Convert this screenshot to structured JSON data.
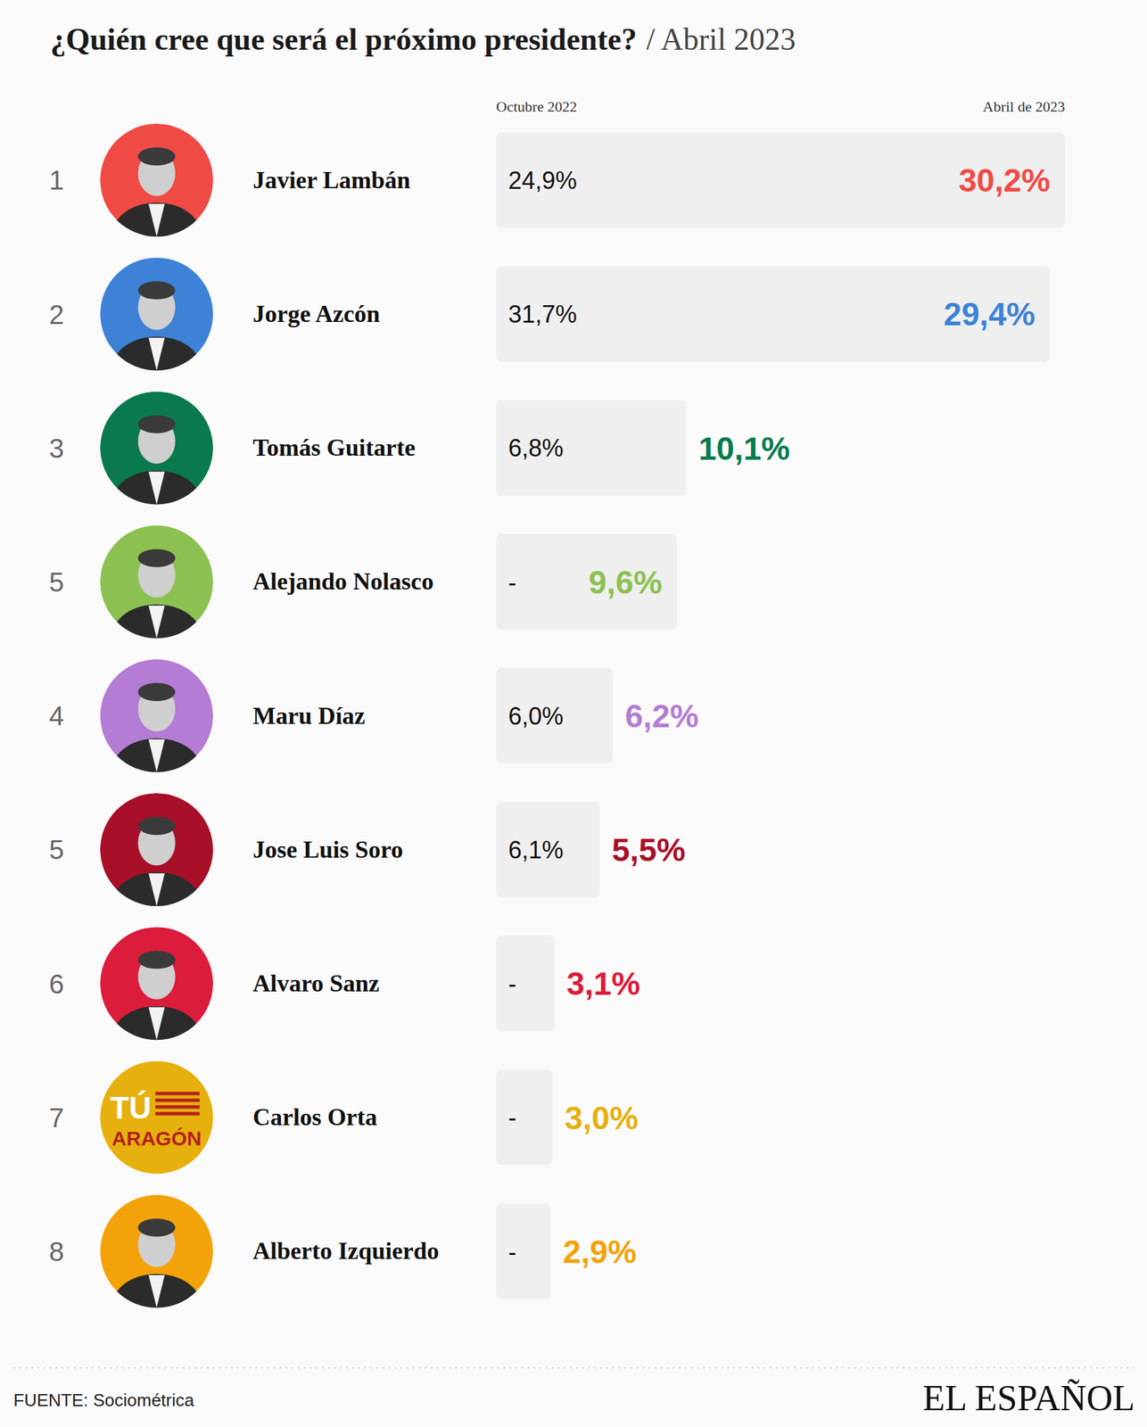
{
  "chart_data": {
    "type": "bar",
    "orientation": "horizontal",
    "title": "¿Quién cree que será el próximo presidente?",
    "subtitle": "/ Abril 2023",
    "ranks": [
      1,
      2,
      3,
      5,
      4,
      5,
      6,
      7,
      8
    ],
    "categories": [
      "Javier Lambán",
      "Jorge Azcón",
      "Tomás Guitarte",
      "Alejando Nolasco",
      "Maru Díaz",
      "Jose Luis Soro",
      "Alvaro Sanz",
      "Carlos Orta",
      "Alberto Izquierdo"
    ],
    "avatar_text": [
      null,
      null,
      null,
      null,
      null,
      null,
      null,
      [
        "TÚ",
        "ARAGÓN"
      ],
      null
    ],
    "series": [
      {
        "name": "Octubre 2022",
        "values": [
          24.9,
          31.7,
          6.8,
          null,
          6.0,
          6.1,
          null,
          null,
          null
        ],
        "value_labels": [
          "24,9%",
          "31,7%",
          "6,8%",
          "-",
          "6,0%",
          "6,1%",
          "-",
          "-",
          "-"
        ]
      },
      {
        "name": "Abril de 2023",
        "values": [
          30.2,
          29.4,
          10.1,
          9.6,
          6.2,
          5.5,
          3.1,
          3.0,
          2.9
        ],
        "value_labels": [
          "30,2%",
          "29,4%",
          "10,1%",
          "9,6%",
          "6,2%",
          "5,5%",
          "3,1%",
          "3,0%",
          "2,9%"
        ],
        "colors": [
          "#f04a45",
          "#3d82d6",
          "#0a7a4e",
          "#8cc152",
          "#b47cd4",
          "#a8102a",
          "#dc1c3c",
          "#e6b00e",
          "#f4a20a"
        ]
      }
    ],
    "data_labels": true,
    "tick_labels": false,
    "source": "FUENTE: Sociométrica",
    "publisher": "EL ESPAÑOL"
  }
}
